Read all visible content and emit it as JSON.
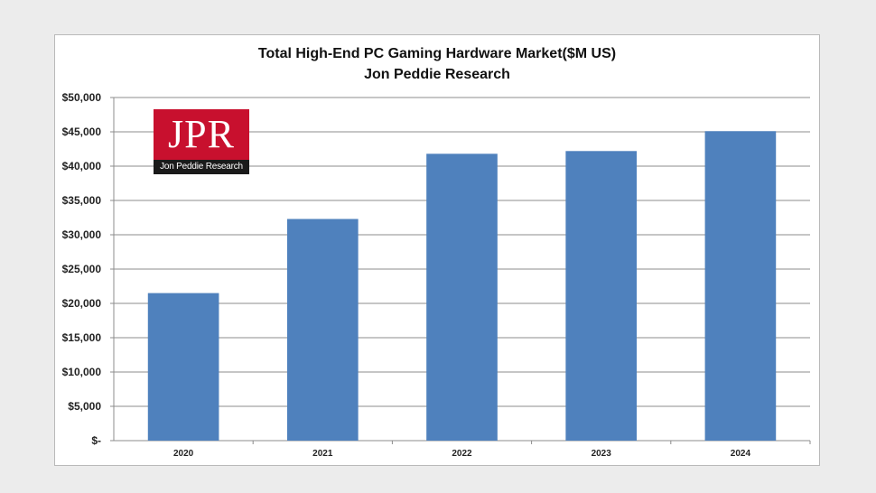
{
  "chart_data": {
    "type": "bar",
    "title": "Total High-End PC Gaming Hardware Market($M US)",
    "subtitle": "Jon Peddie Research",
    "categories": [
      "2020",
      "2021",
      "2022",
      "2023",
      "2024"
    ],
    "values": [
      21500,
      32300,
      41800,
      42200,
      45100
    ],
    "ylim": [
      0,
      50000
    ],
    "yticks": [
      0,
      5000,
      10000,
      15000,
      20000,
      25000,
      30000,
      35000,
      40000,
      45000,
      50000
    ],
    "ytick_labels": [
      "$-",
      "$5,000",
      "$10,000",
      "$15,000",
      "$20,000",
      "$25,000",
      "$30,000",
      "$35,000",
      "$40,000",
      "$45,000",
      "$50,000"
    ],
    "xlabel": "",
    "ylabel": "",
    "grid": true,
    "legend": "none",
    "bar_color": "#4f81bd"
  },
  "logo": {
    "letters": "JPR",
    "tagline": "Jon Peddie Research",
    "color": "#c8102e"
  }
}
